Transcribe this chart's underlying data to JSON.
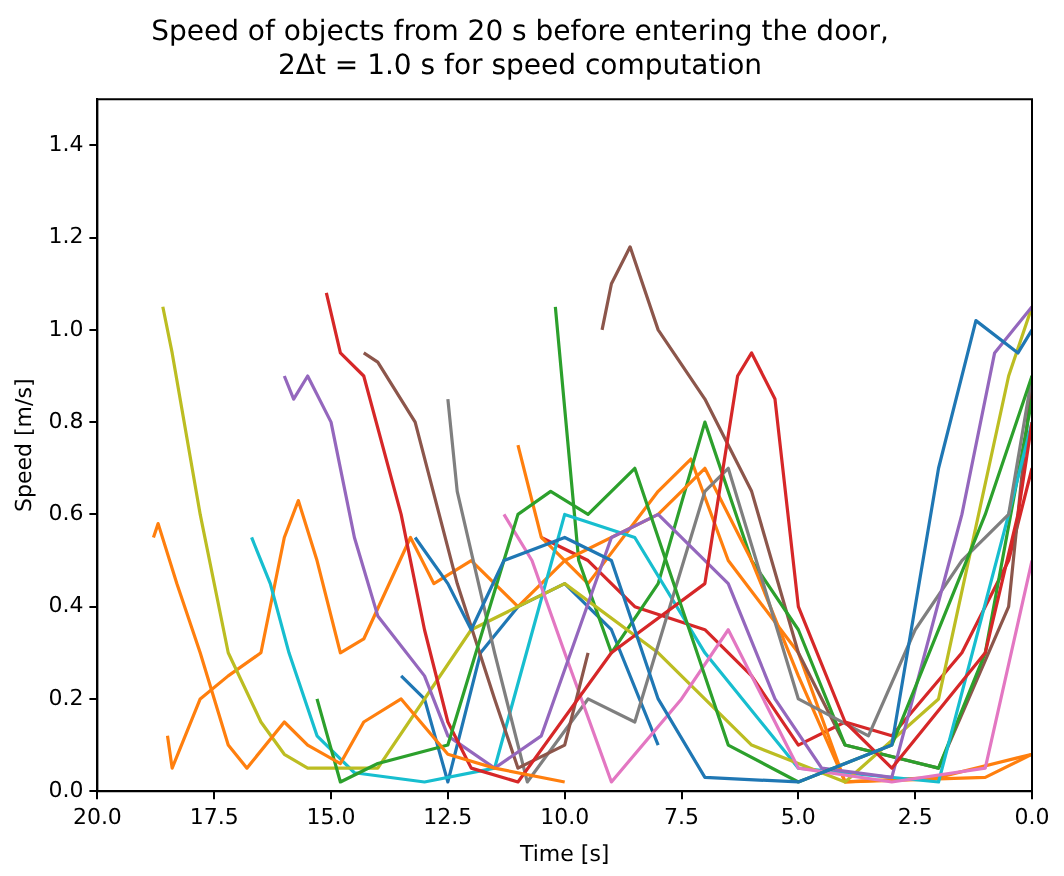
{
  "chart_data": {
    "type": "line",
    "title": "Speed of objects from 20 s before entering the door,\n2Δt = 1.0 s for speed computation",
    "xlabel": "Time [s]",
    "ylabel": "Speed [m/s]",
    "xlim": [
      20,
      0
    ],
    "ylim": [
      0,
      1.5
    ],
    "xticks": [
      {
        "value": 20,
        "label": "20.0"
      },
      17.5,
      {
        "value": 15,
        "label": "15.0"
      },
      12.5,
      {
        "value": 10,
        "label": "10.0"
      },
      7.5,
      {
        "value": 5,
        "label": "5.0"
      },
      2.5,
      {
        "value": 0,
        "label": "0.0"
      }
    ],
    "yticks": [
      {
        "value": 0,
        "label": "0.0"
      },
      0.2,
      0.4,
      0.6,
      0.8,
      {
        "value": 1,
        "label": "1.0"
      },
      1.2,
      1.4
    ],
    "grid": false,
    "legend": false,
    "marker": "none",
    "line_style": "solid",
    "series": [
      {
        "color": "#1f77b4",
        "x": [
          13.2,
          12.5,
          12,
          11.3,
          10,
          9,
          8,
          7,
          5,
          3,
          2,
          1.2,
          0.3,
          0
        ],
        "values": [
          0.55,
          0.45,
          0.35,
          0.5,
          0.55,
          0.5,
          0.2,
          0.03,
          0.02,
          0.1,
          0.7,
          1.02,
          0.95,
          1.0
        ]
      },
      {
        "color": "#ff7f0e",
        "x": [
          18.8,
          18.7,
          18.3,
          17.8,
          17.2,
          16.8,
          16,
          15.5,
          14.8,
          14.3,
          13.5,
          12.5,
          11.5,
          10
        ],
        "values": [
          0.55,
          0.58,
          0.45,
          0.3,
          0.1,
          0.05,
          0.15,
          0.1,
          0.06,
          0.15,
          0.2,
          0.08,
          0.05,
          0.02
        ]
      },
      {
        "color": "#2ca02c",
        "x": [
          15.3,
          14.8,
          14,
          12.5,
          11,
          10.3,
          9.5,
          8.5,
          7.5,
          6.5,
          5,
          3,
          1,
          0
        ],
        "values": [
          0.2,
          0.02,
          0.06,
          0.1,
          0.6,
          0.65,
          0.6,
          0.7,
          0.4,
          0.1,
          0.02,
          0.1,
          0.6,
          0.9
        ]
      },
      {
        "color": "#d62728",
        "x": [
          15.1,
          14.8,
          14.3,
          13.5,
          13,
          12.5,
          12,
          11,
          9,
          7,
          6.3,
          6,
          5.5,
          5,
          4,
          3,
          1,
          0.3,
          0
        ],
        "values": [
          1.08,
          0.95,
          0.9,
          0.6,
          0.35,
          0.15,
          0.05,
          0.02,
          0.3,
          0.45,
          0.9,
          0.95,
          0.85,
          0.4,
          0.15,
          0.05,
          0.3,
          0.6,
          0.8
        ]
      },
      {
        "color": "#9467bd",
        "x": [
          16,
          15.8,
          15.5,
          15,
          14.5,
          14,
          13,
          12.5,
          11.5,
          10.5,
          9,
          8,
          6.5,
          5.5,
          4.5,
          3,
          1.5,
          0.8,
          0
        ],
        "values": [
          0.9,
          0.85,
          0.9,
          0.8,
          0.55,
          0.38,
          0.25,
          0.12,
          0.05,
          0.12,
          0.55,
          0.6,
          0.45,
          0.2,
          0.05,
          0.03,
          0.6,
          0.95,
          1.05
        ]
      },
      {
        "color": "#8c564b",
        "x": [
          14.3,
          14,
          13.2,
          12.3,
          11.5,
          11,
          10,
          9.5
        ],
        "values": [
          0.95,
          0.93,
          0.8,
          0.45,
          0.2,
          0.05,
          0.1,
          0.3
        ]
      },
      {
        "color": "#e377c2",
        "x": [
          11.3,
          10.7,
          10,
          9,
          7.5,
          6.5,
          5,
          3,
          1,
          0
        ],
        "values": [
          0.6,
          0.5,
          0.3,
          0.02,
          0.2,
          0.35,
          0.05,
          0.02,
          0.05,
          0.5
        ]
      },
      {
        "color": "#7f7f7f",
        "x": [
          12.5,
          12.3,
          11.5,
          10.8,
          9.5,
          8.5,
          7,
          6.5,
          5,
          3.5,
          2.5,
          1.5,
          0.5,
          0
        ],
        "values": [
          0.85,
          0.65,
          0.3,
          0.02,
          0.2,
          0.15,
          0.65,
          0.7,
          0.2,
          0.12,
          0.35,
          0.5,
          0.6,
          0.9
        ]
      },
      {
        "color": "#bcbd22",
        "x": [
          18.6,
          18.4,
          17.8,
          17.2,
          16.5,
          16,
          15.5,
          14,
          12,
          10,
          8,
          6,
          4,
          2,
          0.5,
          0
        ],
        "values": [
          1.05,
          0.95,
          0.6,
          0.3,
          0.15,
          0.08,
          0.05,
          0.05,
          0.35,
          0.45,
          0.3,
          0.1,
          0.02,
          0.2,
          0.9,
          1.05
        ]
      },
      {
        "color": "#17becf",
        "x": [
          16.7,
          16.3,
          15.9,
          15.3,
          14.5,
          13,
          11.5,
          10,
          8.5,
          7,
          5,
          2,
          0.5,
          0
        ],
        "values": [
          0.55,
          0.45,
          0.3,
          0.12,
          0.04,
          0.02,
          0.05,
          0.6,
          0.55,
          0.3,
          0.05,
          0.02,
          0.6,
          0.8
        ]
      },
      {
        "color": "#ff7f0e",
        "x": [
          18.5,
          18.4,
          17.8,
          17.2,
          16.5,
          16,
          15.7,
          15.3,
          14.8,
          14.3,
          13.3,
          12.8,
          12,
          11,
          10,
          8,
          7,
          6,
          5,
          4,
          2,
          0
        ],
        "values": [
          0.12,
          0.05,
          0.2,
          0.25,
          0.3,
          0.55,
          0.63,
          0.5,
          0.3,
          0.33,
          0.55,
          0.45,
          0.5,
          0.4,
          0.5,
          0.6,
          0.7,
          0.5,
          0.25,
          0.02,
          0.03,
          0.08
        ]
      },
      {
        "color": "#2ca02c",
        "x": [
          10.2,
          9.7,
          9,
          8,
          7,
          6,
          5,
          4,
          2,
          1,
          0
        ],
        "values": [
          1.05,
          0.5,
          0.3,
          0.45,
          0.8,
          0.5,
          0.35,
          0.1,
          0.05,
          0.3,
          0.85
        ]
      },
      {
        "color": "#8c564b",
        "x": [
          9.2,
          9,
          8.6,
          8,
          7,
          6,
          5,
          4,
          2,
          0.5,
          0
        ],
        "values": [
          1.0,
          1.1,
          1.18,
          1.0,
          0.85,
          0.65,
          0.3,
          0.1,
          0.05,
          0.4,
          0.9
        ]
      },
      {
        "color": "#1f77b4",
        "x": [
          13.5,
          13,
          12.5,
          11.8,
          11,
          10,
          9,
          8
        ],
        "values": [
          0.25,
          0.2,
          0.02,
          0.3,
          0.4,
          0.45,
          0.35,
          0.1
        ]
      },
      {
        "color": "#ff7f0e",
        "x": [
          11,
          10.5,
          9.5,
          8,
          7.3,
          6.5,
          5,
          4,
          1,
          0
        ],
        "values": [
          0.75,
          0.55,
          0.45,
          0.65,
          0.72,
          0.5,
          0.3,
          0.02,
          0.03,
          0.08
        ]
      },
      {
        "color": "#d62728",
        "x": [
          10.5,
          9.5,
          8.5,
          7,
          6,
          5,
          4,
          3,
          1.5,
          0.5,
          0
        ],
        "values": [
          0.55,
          0.5,
          0.4,
          0.35,
          0.25,
          0.1,
          0.15,
          0.12,
          0.3,
          0.5,
          0.7
        ]
      }
    ]
  }
}
